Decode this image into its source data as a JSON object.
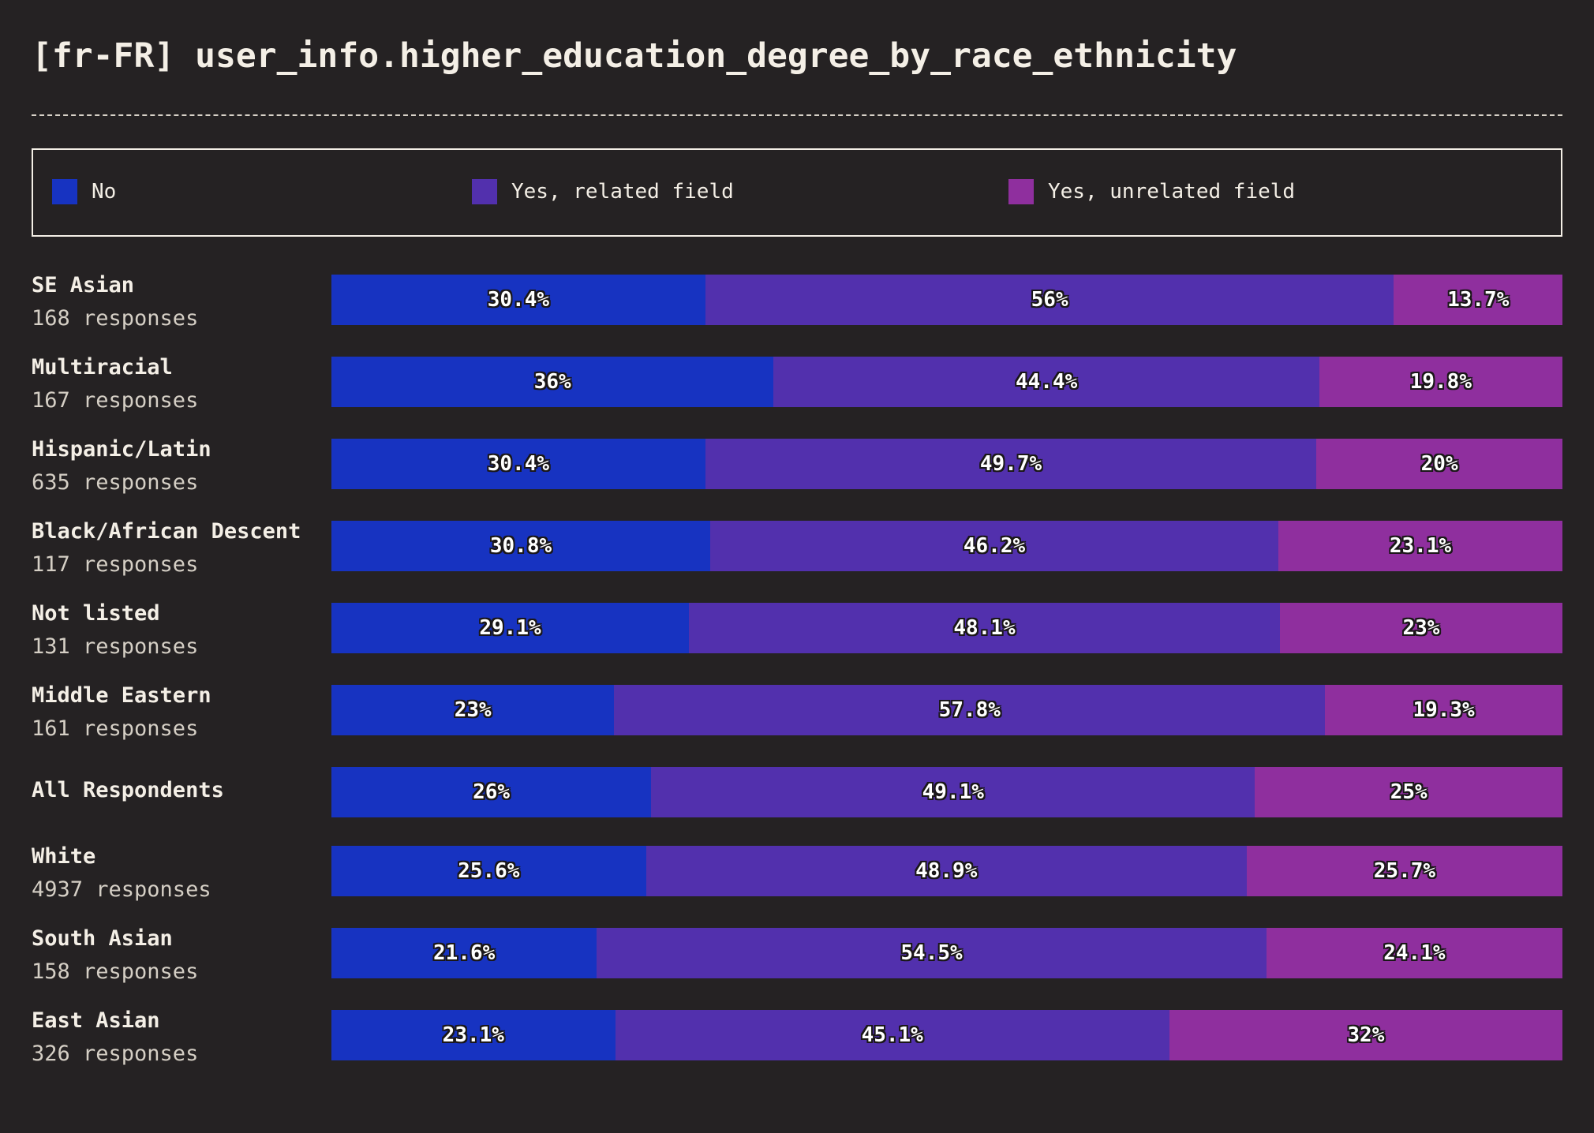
{
  "title": "[fr-FR] user_info.higher_education_degree_by_race_ethnicity",
  "colors": {
    "background": "#252223",
    "no": "#1733c1",
    "yes_related": "#5230ad",
    "yes_unrelated": "#8f2f9e"
  },
  "legend": [
    {
      "label": "No",
      "color": "#1733c1"
    },
    {
      "label": "Yes, related field",
      "color": "#5230ad"
    },
    {
      "label": "Yes, unrelated field",
      "color": "#8f2f9e"
    }
  ],
  "chart_data": {
    "type": "bar",
    "stacked": true,
    "orientation": "horizontal",
    "title": "[fr-FR] user_info.higher_education_degree_by_race_ethnicity",
    "legend_placement": "top",
    "categories": [
      "SE Asian",
      "Multiracial",
      "Hispanic/Latin",
      "Black/African Descent",
      "Not listed",
      "Middle Eastern",
      "All Respondents",
      "White",
      "South Asian",
      "East Asian"
    ],
    "responses": [
      "168 responses",
      "167 responses",
      "635 responses",
      "117 responses",
      "131 responses",
      "161 responses",
      "",
      "4937 responses",
      "158 responses",
      "326 responses"
    ],
    "series": [
      {
        "name": "No",
        "values": [
          30.4,
          36,
          30.4,
          30.8,
          29.1,
          23,
          26,
          25.6,
          21.6,
          23.1
        ],
        "labels": [
          "30.4%",
          "36%",
          "30.4%",
          "30.8%",
          "29.1%",
          "23%",
          "26%",
          "25.6%",
          "21.6%",
          "23.1%"
        ]
      },
      {
        "name": "Yes, related field",
        "values": [
          56,
          44.4,
          49.7,
          46.2,
          48.1,
          57.8,
          49.1,
          48.9,
          54.5,
          45.1
        ],
        "labels": [
          "56%",
          "44.4%",
          "49.7%",
          "46.2%",
          "48.1%",
          "57.8%",
          "49.1%",
          "48.9%",
          "54.5%",
          "45.1%"
        ]
      },
      {
        "name": "Yes, unrelated field",
        "values": [
          13.7,
          19.8,
          20,
          23.1,
          23,
          19.3,
          25,
          25.7,
          24.1,
          32
        ],
        "labels": [
          "13.7%",
          "19.8%",
          "20%",
          "23.1%",
          "23%",
          "19.3%",
          "25%",
          "25.7%",
          "24.1%",
          "32%"
        ]
      }
    ],
    "xlim": [
      0,
      100
    ]
  }
}
